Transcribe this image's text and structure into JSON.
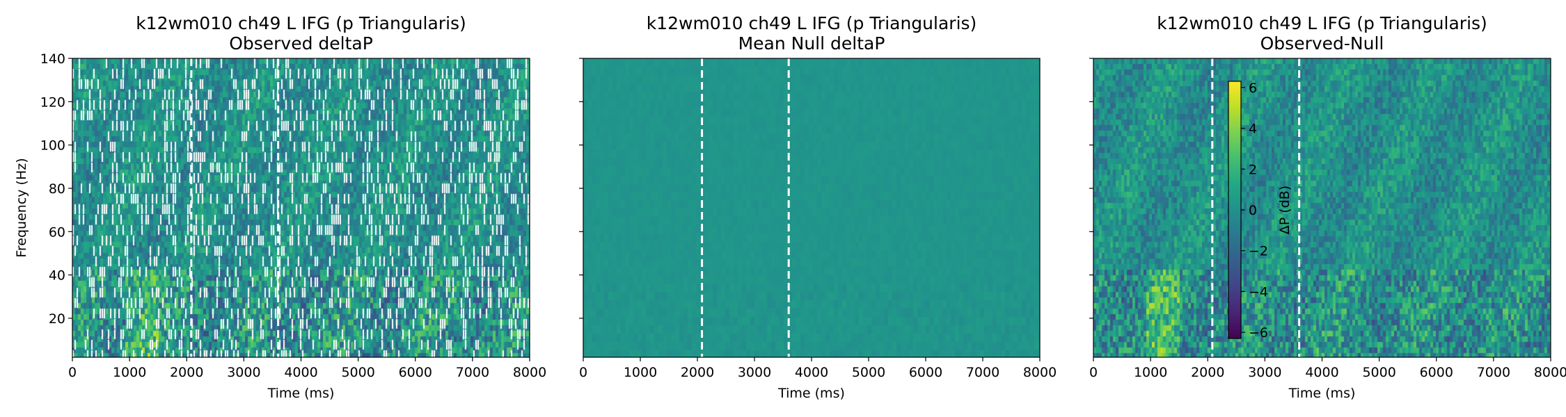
{
  "chart_data": [
    {
      "type": "heatmap",
      "title": "k12wm010 ch49 L IFG (p Triangularis)",
      "subtitle": "Observed deltaP",
      "xlabel": "Time (ms)",
      "ylabel": "Frequency (Hz)",
      "xlim": [
        0,
        8000
      ],
      "ylim": [
        2,
        140
      ],
      "xticks": [
        0,
        1000,
        2000,
        3000,
        4000,
        5000,
        6000,
        7000,
        8000
      ],
      "yticks": [
        20,
        40,
        60,
        80,
        100,
        120,
        140
      ],
      "event_lines_ms": [
        2080,
        3600
      ],
      "value_mean_db": 0,
      "significance_mask": true
    },
    {
      "type": "heatmap",
      "title": "k12wm010 ch49 L IFG (p Triangularis)",
      "subtitle": "Mean Null deltaP",
      "xlabel": "Time (ms)",
      "ylabel": "",
      "xlim": [
        0,
        8000
      ],
      "ylim": [
        2,
        140
      ],
      "xticks": [
        0,
        1000,
        2000,
        3000,
        4000,
        5000,
        6000,
        7000,
        8000
      ],
      "yticks": [
        20,
        40,
        60,
        80,
        100,
        120,
        140
      ],
      "event_lines_ms": [
        2080,
        3600
      ],
      "value_mean_db": 0.2
    },
    {
      "type": "heatmap",
      "title": "k12wm010 ch49 L IFG (p Triangularis)",
      "subtitle": "Observed-Null",
      "xlabel": "Time (ms)",
      "ylabel": "",
      "xlim": [
        0,
        8000
      ],
      "ylim": [
        2,
        140
      ],
      "xticks": [
        0,
        1000,
        2000,
        3000,
        4000,
        5000,
        6000,
        7000,
        8000
      ],
      "yticks": [
        20,
        40,
        60,
        80,
        100,
        120,
        140
      ],
      "event_lines_ms": [
        2080,
        3600
      ],
      "value_mean_db": 0,
      "colorbar": {
        "label": "ΔP (dB)",
        "range": [
          -6.3,
          6.3
        ],
        "ticks": [
          -6,
          -4,
          -2,
          0,
          2,
          4,
          6
        ],
        "colormap": "viridis"
      }
    }
  ]
}
